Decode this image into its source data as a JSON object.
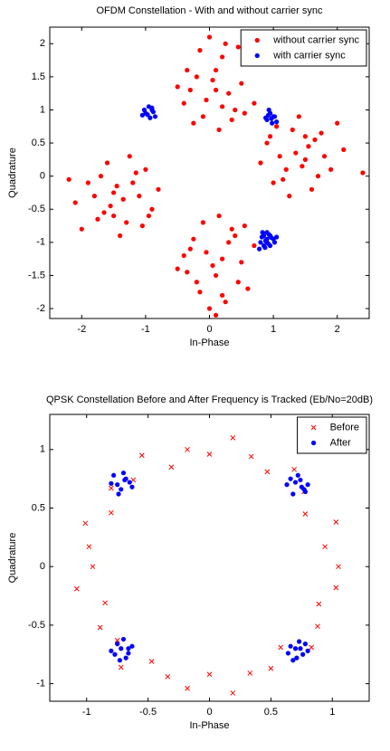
{
  "chart_data": [
    {
      "type": "scatter",
      "title": "OFDM Constellation - With and without carrier sync",
      "xlabel": "In-Phase",
      "ylabel": "Quadrature",
      "xlim": [
        -2.5,
        2.5
      ],
      "ylim": [
        -2.15,
        2.25
      ],
      "xticks": [
        -2,
        -1,
        0,
        1,
        2
      ],
      "yticks": [
        -2,
        -1.5,
        -1,
        -0.5,
        0,
        0.5,
        1,
        1.5,
        2
      ],
      "legend": "northeast",
      "series": [
        {
          "name": "without carrier sync",
          "color": "#ff0000",
          "marker": "dot",
          "x": [
            -0.3,
            0.1,
            0.4,
            -0.1,
            0.2,
            0.5,
            -0.4,
            0.0,
            0.3,
            -0.2,
            0.15,
            0.6,
            -0.5,
            0.25,
            -0.05,
            0.35,
            0.45,
            -0.25,
            0.05,
            0.7,
            -0.15,
            0.2,
            0.55,
            -0.35,
            0.1,
            0.9,
            1.2,
            1.5,
            1.8,
            1.0,
            1.4,
            1.7,
            2.1,
            1.1,
            1.3,
            1.6,
            0.8,
            2.0,
            1.25,
            1.55,
            1.9,
            1.05,
            1.45,
            2.4,
            1.35,
            1.65,
            0.95,
            1.15,
            1.75,
            1.5,
            -0.3,
            0.1,
            0.4,
            -0.1,
            0.2,
            0.5,
            -0.4,
            0.0,
            0.3,
            -0.2,
            0.15,
            0.6,
            -0.5,
            0.25,
            -0.05,
            0.35,
            0.45,
            -0.25,
            0.05,
            0.7,
            -0.15,
            0.2,
            0.55,
            -0.35,
            0.1,
            -0.9,
            -1.2,
            -1.5,
            -1.8,
            -1.0,
            -1.4,
            -1.7,
            -2.1,
            -1.1,
            -1.3,
            -1.6,
            -0.8,
            -2.0,
            -1.25,
            -1.55,
            -1.9,
            -1.05,
            -1.45,
            -2.2,
            -1.35,
            -1.65,
            -0.95,
            -1.15,
            -1.75,
            -1.5
          ],
          "y": [
            1.3,
            1.6,
            1.0,
            0.9,
            1.8,
            1.4,
            1.1,
            2.1,
            1.25,
            1.5,
            0.7,
            1.7,
            1.35,
            2.0,
            1.15,
            0.85,
            1.95,
            0.8,
            1.45,
            1.1,
            1.9,
            1.05,
            0.95,
            1.6,
            1.3,
            0.5,
            0.1,
            0.6,
            0.3,
            -0.1,
            0.9,
            0.0,
            0.4,
            0.3,
            0.7,
            -0.2,
            0.2,
            0.8,
            -0.3,
            0.45,
            0.1,
            0.75,
            0.15,
            0.05,
            0.35,
            0.55,
            0.6,
            -0.05,
            0.65,
            0.25,
            -1.1,
            -1.5,
            -0.9,
            -0.7,
            -1.8,
            -1.3,
            -1.2,
            -2.0,
            -1.0,
            -1.6,
            -0.6,
            -1.7,
            -1.4,
            -1.9,
            -1.15,
            -0.8,
            -1.6,
            -0.95,
            -1.35,
            -1.05,
            -1.75,
            -1.25,
            -0.75,
            -1.45,
            -2.1,
            -0.5,
            -0.1,
            -0.6,
            -0.3,
            0.1,
            -0.9,
            0.0,
            -0.4,
            -0.3,
            -0.7,
            0.2,
            -0.2,
            -0.8,
            0.3,
            -0.45,
            -0.1,
            -0.75,
            -0.15,
            -0.05,
            -0.35,
            -0.55,
            -0.6,
            0.05,
            -0.65,
            -0.25
          ]
        },
        {
          "name": "with carrier sync",
          "color": "#0000ff",
          "marker": "dot",
          "x": [
            -1.0,
            -0.9,
            -0.85,
            -1.05,
            -0.95,
            -0.88,
            -1.02,
            -0.93,
            -0.97,
            -0.9,
            0.9,
            1.0,
            0.95,
            1.05,
            0.88,
            0.98,
            0.92,
            1.02,
            0.97,
            0.93,
            1.0,
            0.9,
            0.85,
            1.05,
            0.95,
            0.88,
            1.02,
            0.93,
            0.97,
            0.9,
            0.8,
            0.9,
            0.85,
            0.95,
            0.78,
            0.88,
            0.82,
            0.92,
            0.87,
            0.83
          ],
          "y": [
            0.95,
            1.0,
            0.9,
            0.92,
            1.05,
            0.97,
            1.0,
            0.88,
            0.93,
            1.03,
            0.85,
            0.9,
            0.95,
            0.82,
            0.88,
            0.8,
            0.92,
            0.9,
            0.87,
            1.0,
            -0.95,
            -1.0,
            -0.9,
            -0.92,
            -1.05,
            -0.97,
            -1.0,
            -0.88,
            -0.93,
            -0.85,
            -1.0,
            -0.95,
            -1.05,
            -0.9,
            -1.1,
            -0.98,
            -0.92,
            -1.02,
            -1.08,
            -0.85
          ]
        }
      ]
    },
    {
      "type": "scatter",
      "title": "QPSK Constellation Before and After Frequency is Tracked (Eb/No=20dB)",
      "xlabel": "In-Phase",
      "ylabel": "Quadrature",
      "xlim": [
        -1.3,
        1.3
      ],
      "ylim": [
        -1.15,
        1.3
      ],
      "xticks": [
        -1,
        -0.5,
        0,
        0.5,
        1
      ],
      "yticks": [
        -1,
        -0.5,
        0,
        0.5,
        1
      ],
      "legend": "northeast",
      "series": [
        {
          "name": "Before",
          "color": "#ff0000",
          "marker": "x",
          "x": [
            1.05,
            0.94,
            1.03,
            0.78,
            0.77,
            0.69,
            0.47,
            0.34,
            0.19,
            0,
            -0.18,
            -0.31,
            -0.55,
            -0.62,
            -0.8,
            -0.8,
            -1.01,
            -0.98,
            -0.95,
            -1.08,
            -0.85,
            -0.89,
            -0.75,
            -0.72,
            -0.47,
            -0.34,
            -0.18,
            0,
            0.19,
            0.33,
            0.5,
            0.58,
            0.83,
            0.88,
            0.89,
            1.03
          ],
          "y": [
            0,
            0.17,
            0.38,
            0.45,
            0.64,
            0.83,
            0.81,
            0.94,
            1.1,
            0.96,
            1.0,
            0.85,
            0.95,
            0.74,
            0.67,
            0.46,
            0.37,
            0.17,
            0,
            -0.19,
            -0.31,
            -0.52,
            -0.63,
            -0.86,
            -0.81,
            -0.94,
            -1.04,
            -0.92,
            -1.08,
            -0.91,
            -0.87,
            -0.69,
            -0.69,
            -0.51,
            -0.32,
            -0.18
          ]
        },
        {
          "name": "After",
          "color": "#0000ff",
          "marker": "dot",
          "x": [
            -0.75,
            -0.68,
            -0.72,
            -0.65,
            -0.78,
            -0.7,
            -0.63,
            -0.74,
            -0.69,
            -0.8,
            0.7,
            0.75,
            0.66,
            0.78,
            0.72,
            0.8,
            0.68,
            0.74,
            0.63,
            0.77,
            -0.72,
            -0.66,
            -0.75,
            -0.68,
            -0.8,
            -0.63,
            -0.7,
            -0.77,
            -0.73,
            -0.66,
            0.7,
            0.76,
            0.66,
            0.8,
            0.73,
            0.68,
            0.78,
            0.64,
            0.74,
            0.71
          ],
          "y": [
            0.7,
            0.75,
            0.66,
            0.72,
            0.78,
            0.8,
            0.68,
            0.62,
            0.74,
            0.71,
            0.72,
            0.68,
            0.75,
            0.64,
            0.78,
            0.7,
            0.62,
            0.74,
            0.7,
            0.66,
            -0.7,
            -0.74,
            -0.66,
            -0.78,
            -0.72,
            -0.68,
            -0.62,
            -0.75,
            -0.8,
            -0.7,
            -0.7,
            -0.75,
            -0.68,
            -0.72,
            -0.64,
            -0.8,
            -0.66,
            -0.74,
            -0.7,
            -0.78
          ]
        }
      ]
    }
  ]
}
